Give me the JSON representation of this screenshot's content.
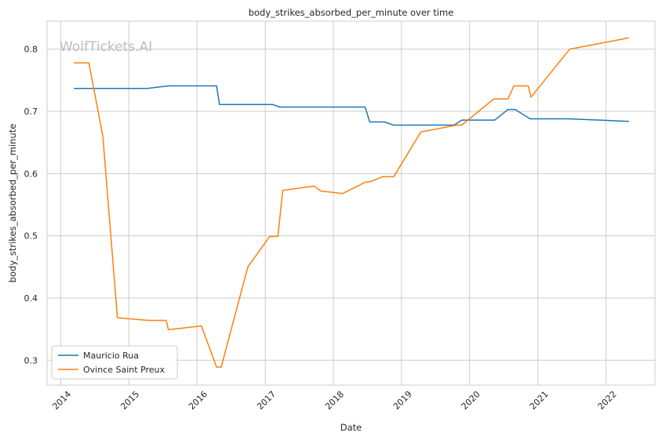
{
  "chart_data": {
    "type": "line",
    "title": "body_strikes_absorbed_per_minute over time",
    "xlabel": "Date",
    "ylabel": "body_strikes_absorbed_per_minute",
    "watermark": "WolfTickets.AI",
    "xlim": [
      "2013-10-20",
      "2022-09-20"
    ],
    "ylim": [
      0.26,
      0.845
    ],
    "x_ticks": [
      "2014",
      "2015",
      "2016",
      "2017",
      "2018",
      "2019",
      "2020",
      "2021",
      "2022"
    ],
    "y_ticks": [
      "0.3",
      "0.4",
      "0.5",
      "0.6",
      "0.7",
      "0.8"
    ],
    "grid": true,
    "legend_position": "lower-left",
    "series": [
      {
        "name": "Mauricio Rua",
        "color": "#1f77b4",
        "points": [
          [
            "2014-03-15",
            0.737
          ],
          [
            "2015-04-10",
            0.737
          ],
          [
            "2015-08-01",
            0.741
          ],
          [
            "2016-04-15",
            0.741
          ],
          [
            "2016-05-01",
            0.711
          ],
          [
            "2017-02-10",
            0.711
          ],
          [
            "2017-03-20",
            0.707
          ],
          [
            "2018-06-20",
            0.707
          ],
          [
            "2018-07-15",
            0.683
          ],
          [
            "2018-10-01",
            0.683
          ],
          [
            "2018-11-20",
            0.678
          ],
          [
            "2019-10-10",
            0.678
          ],
          [
            "2019-11-20",
            0.686
          ],
          [
            "2020-05-15",
            0.686
          ],
          [
            "2020-07-25",
            0.703
          ],
          [
            "2020-09-01",
            0.703
          ],
          [
            "2020-11-20",
            0.688
          ],
          [
            "2021-06-15",
            0.688
          ],
          [
            "2022-05-01",
            0.684
          ]
        ]
      },
      {
        "name": "Ovince Saint Preux",
        "color": "#ff7f0e",
        "points": [
          [
            "2014-03-15",
            0.778
          ],
          [
            "2014-06-01",
            0.778
          ],
          [
            "2014-08-15",
            0.66
          ],
          [
            "2014-11-01",
            0.368
          ],
          [
            "2015-04-15",
            0.364
          ],
          [
            "2015-07-20",
            0.364
          ],
          [
            "2015-08-01",
            0.349
          ],
          [
            "2016-01-25",
            0.355
          ],
          [
            "2016-04-15",
            0.289
          ],
          [
            "2016-05-10",
            0.289
          ],
          [
            "2016-09-30",
            0.45
          ],
          [
            "2017-01-25",
            0.499
          ],
          [
            "2017-03-10",
            0.499
          ],
          [
            "2017-04-05",
            0.573
          ],
          [
            "2017-09-20",
            0.58
          ],
          [
            "2017-10-25",
            0.572
          ],
          [
            "2018-02-20",
            0.568
          ],
          [
            "2018-06-20",
            0.586
          ],
          [
            "2018-07-20",
            0.587
          ],
          [
            "2018-09-20",
            0.595
          ],
          [
            "2018-11-20",
            0.595
          ],
          [
            "2019-04-15",
            0.667
          ],
          [
            "2019-10-25",
            0.678
          ],
          [
            "2019-11-20",
            0.678
          ],
          [
            "2020-05-10",
            0.72
          ],
          [
            "2020-07-25",
            0.72
          ],
          [
            "2020-08-25",
            0.741
          ],
          [
            "2020-11-10",
            0.741
          ],
          [
            "2020-11-25",
            0.723
          ],
          [
            "2021-06-20",
            0.8
          ],
          [
            "2022-05-01",
            0.818
          ]
        ]
      }
    ]
  }
}
